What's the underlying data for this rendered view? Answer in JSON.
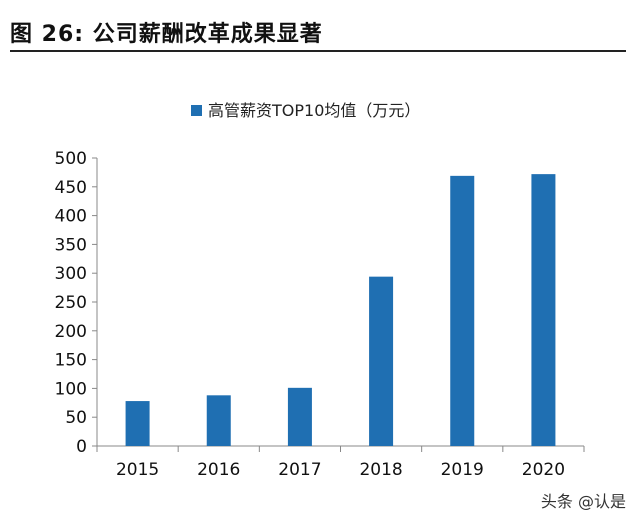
{
  "figure": {
    "title": "图 26: 公司薪酬改革成果显著"
  },
  "chart_data": {
    "type": "bar",
    "title": "",
    "xlabel": "",
    "ylabel": "",
    "categories": [
      "2015",
      "2016",
      "2017",
      "2018",
      "2019",
      "2020"
    ],
    "series": [
      {
        "name": "高管薪资TOP10均值（万元）",
        "values": [
          78,
          88,
          101,
          294,
          469,
          472
        ]
      }
    ],
    "ylim": [
      0,
      500
    ],
    "yticks": [
      0,
      50,
      100,
      150,
      200,
      250,
      300,
      350,
      400,
      450,
      500
    ],
    "grid": false,
    "legend_position": "top",
    "bar_color": "#1F6FB2"
  },
  "watermark": {
    "text": "头条 @认是"
  }
}
